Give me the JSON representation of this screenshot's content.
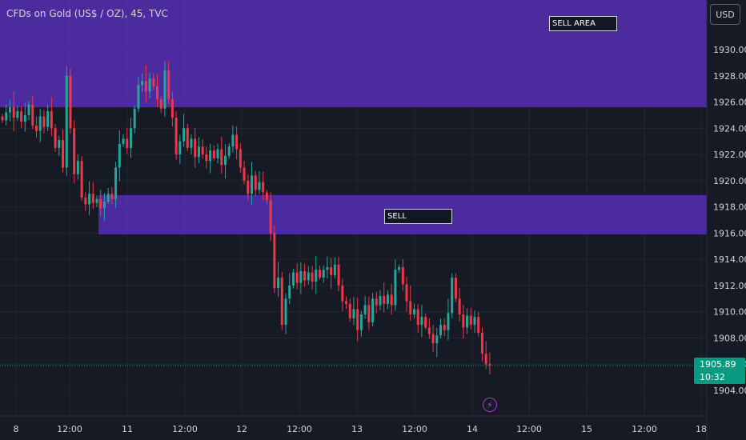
{
  "header": {
    "title": "CFDs on Gold (US$ / OZ), 45, TVC",
    "currency_button": "USD"
  },
  "colors": {
    "background": "#161a25",
    "up_candle": "#26a69a",
    "down_candle": "#f23645",
    "zone_fill": "#512da8",
    "last_price_bg": "#089981",
    "grid": "#222632"
  },
  "zones": [
    {
      "label": "SELL AREA",
      "price_top": 1934,
      "price_bottom": 1925.6,
      "start_time": "8 00:00"
    },
    {
      "label": "SELL",
      "price_top": 1918.9,
      "price_bottom": 1915.9,
      "start_time": "10 09:00"
    }
  ],
  "last_price": {
    "value": "1905.89",
    "countdown": "10:32"
  },
  "icons": {
    "flash": "lightning-icon"
  },
  "chart_data": {
    "type": "candlestick",
    "title": "CFDs on Gold (US$ / OZ), 45, TVC",
    "ylim": [
      1903.2,
      1934
    ],
    "y_ticks": [
      1904,
      1906,
      1908,
      1910,
      1912,
      1914,
      1916,
      1918,
      1920,
      1922,
      1924,
      1926,
      1928,
      1930
    ],
    "y_tick_labels": [
      "1904.00",
      "1906.00",
      "1908.00",
      "1910.00",
      "1912.00",
      "1914.00",
      "1916.00",
      "1918.00",
      "1920.00",
      "1922.00",
      "1924.00",
      "1926.00",
      "1928.00",
      "1930.00"
    ],
    "x_tick_labels": [
      "8",
      "12:00",
      "11",
      "12:00",
      "12",
      "12:00",
      "13",
      "12:00",
      "14",
      "12:00",
      "15",
      "12:00",
      "18"
    ],
    "grid": true,
    "closes": [
      1924.6,
      1925.2,
      1925.6,
      1924.8,
      1925.3,
      1924.5,
      1925.0,
      1925.8,
      1924.2,
      1923.8,
      1924.9,
      1924.1,
      1925.3,
      1924.0,
      1922.5,
      1923.1,
      1921.0,
      1928.0,
      1924.0,
      1920.5,
      1921.5,
      1918.7,
      1918.2,
      1919.0,
      1918.3,
      1918.6,
      1917.9,
      1918.4,
      1919.0,
      1918.6,
      1921.0,
      1922.8,
      1923.2,
      1922.5,
      1924.0,
      1925.5,
      1927.3,
      1927.6,
      1926.8,
      1927.8,
      1927.2,
      1926.2,
      1925.5,
      1928.4,
      1926.2,
      1924.8,
      1922.0,
      1923.0,
      1924.0,
      1922.5,
      1923.2,
      1921.8,
      1922.6,
      1922.0,
      1921.5,
      1922.3,
      1921.7,
      1922.4,
      1921.2,
      1921.9,
      1922.6,
      1923.5,
      1922.4,
      1921.0,
      1920.0,
      1919.0,
      1920.4,
      1919.3,
      1919.9,
      1919.1,
      1918.5,
      1916.0,
      1911.8,
      1912.6,
      1909.0,
      1911.0,
      1912.0,
      1913.0,
      1912.2,
      1913.1,
      1912.4,
      1913.0,
      1912.3,
      1913.2,
      1912.6,
      1913.2,
      1913.4,
      1912.8,
      1913.6,
      1912.0,
      1910.8,
      1910.6,
      1909.5,
      1910.2,
      1908.6,
      1909.8,
      1910.5,
      1909.2,
      1911.0,
      1910.5,
      1911.2,
      1910.6,
      1911.3,
      1910.5,
      1913.2,
      1913.4,
      1912.1,
      1910.8,
      1909.8,
      1910.2,
      1909.0,
      1909.6,
      1908.8,
      1908.3,
      1907.6,
      1908.2,
      1909.0,
      1908.6,
      1909.9,
      1912.6,
      1911.0,
      1909.8,
      1908.8,
      1909.7,
      1909.0,
      1909.6,
      1908.4,
      1906.8,
      1906.0,
      1905.89
    ],
    "last_price": 1905.89
  }
}
